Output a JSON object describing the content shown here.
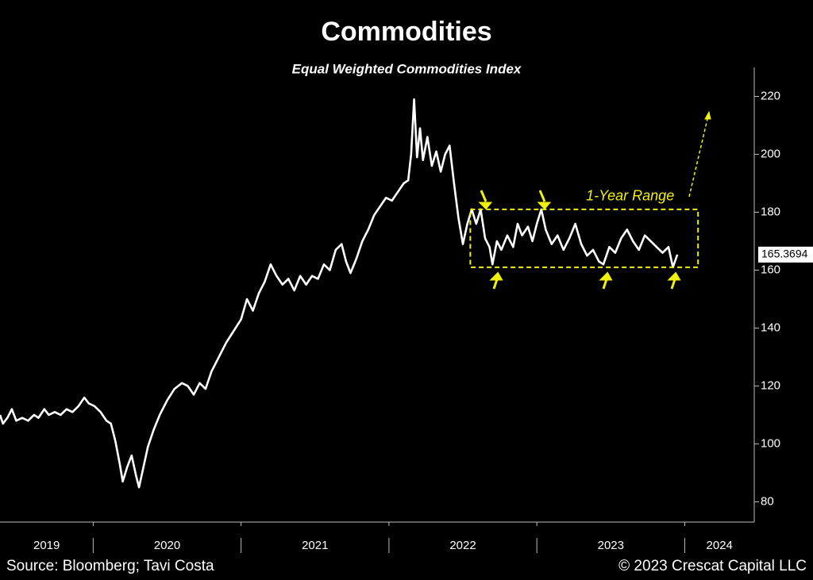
{
  "chart_data": {
    "type": "line",
    "title": "Commodities",
    "subtitle": "Equal Weighted Commodities Index",
    "source": "Source: Bloomberg; Tavi Costa",
    "copyright": "© 2023 Crescat Capital LLC",
    "x": [
      2019.37,
      2019.39,
      2019.42,
      2019.45,
      2019.48,
      2019.52,
      2019.56,
      2019.6,
      2019.63,
      2019.67,
      2019.7,
      2019.74,
      2019.78,
      2019.82,
      2019.86,
      2019.9,
      2019.94,
      2019.97,
      2020.01,
      2020.05,
      2020.09,
      2020.12,
      2020.15,
      2020.18,
      2020.2,
      2020.23,
      2020.26,
      2020.29,
      2020.31,
      2020.34,
      2020.37,
      2020.41,
      2020.45,
      2020.5,
      2020.55,
      2020.6,
      2020.64,
      2020.68,
      2020.72,
      2020.76,
      2020.8,
      2020.85,
      2020.9,
      2020.95,
      2021.0,
      2021.04,
      2021.08,
      2021.12,
      2021.16,
      2021.2,
      2021.24,
      2021.28,
      2021.32,
      2021.36,
      2021.4,
      2021.44,
      2021.48,
      2021.52,
      2021.56,
      2021.6,
      2021.64,
      2021.68,
      2021.71,
      2021.74,
      2021.78,
      2021.82,
      2021.86,
      2021.9,
      2021.94,
      2021.98,
      2022.02,
      2022.06,
      2022.1,
      2022.13,
      2022.15,
      2022.17,
      2022.19,
      2022.21,
      2022.23,
      2022.26,
      2022.29,
      2022.32,
      2022.35,
      2022.38,
      2022.41,
      2022.44,
      2022.47,
      2022.5,
      2022.53,
      2022.56,
      2022.59,
      2022.62,
      2022.65,
      2022.68,
      2022.7,
      2022.73,
      2022.76,
      2022.8,
      2022.84,
      2022.87,
      2022.9,
      2022.94,
      2022.97,
      2023.0,
      2023.03,
      2023.06,
      2023.1,
      2023.14,
      2023.18,
      2023.22,
      2023.26,
      2023.3,
      2023.34,
      2023.38,
      2023.42,
      2023.45,
      2023.49,
      2023.53,
      2023.57,
      2023.61,
      2023.65,
      2023.69,
      2023.73,
      2023.77,
      2023.81,
      2023.85,
      2023.89,
      2023.92,
      2023.95
    ],
    "series": [
      {
        "color": "#ffffff",
        "values": [
          110,
          107,
          109,
          112,
          108,
          109,
          108,
          110,
          109,
          112,
          110,
          111,
          110,
          112,
          111,
          113,
          116,
          114,
          113,
          111,
          108,
          107,
          101,
          93,
          87,
          92,
          96,
          89,
          85,
          92,
          99,
          105,
          110,
          115,
          119,
          121,
          120,
          117,
          121,
          119,
          125,
          130,
          135,
          139,
          143,
          150,
          146,
          152,
          156,
          162,
          158,
          155,
          157,
          153,
          158,
          155,
          158,
          157,
          162,
          160,
          167,
          169,
          163,
          159,
          164,
          170,
          174,
          179,
          182,
          185,
          184,
          187,
          190,
          191,
          200,
          219,
          199,
          209,
          198,
          206,
          196,
          201,
          194,
          200,
          203,
          190,
          178,
          169,
          176,
          181,
          176,
          181,
          171,
          168,
          162,
          170,
          167,
          172,
          168,
          176,
          172,
          175,
          170,
          176,
          181,
          174,
          169,
          172,
          167,
          171,
          176,
          169,
          165,
          167,
          163,
          162,
          168,
          166,
          171,
          174,
          170,
          167,
          172,
          170,
          168,
          166,
          168,
          161,
          165.3694
        ]
      }
    ],
    "xlim": [
      2019.37,
      2024.47
    ],
    "xticks": [
      2020,
      2021,
      2022,
      2023,
      2024
    ],
    "year_labels": [
      2019,
      2020,
      2021,
      2022,
      2023,
      2024
    ],
    "ylim": [
      73,
      230
    ],
    "yticks": [
      80,
      100,
      120,
      140,
      160,
      180,
      200,
      220
    ],
    "range_box": {
      "label": "1-Year Range",
      "color": "#f0f00a",
      "xlim": [
        2022.55,
        2024.09
      ],
      "ylim": [
        161,
        181
      ]
    }
  }
}
